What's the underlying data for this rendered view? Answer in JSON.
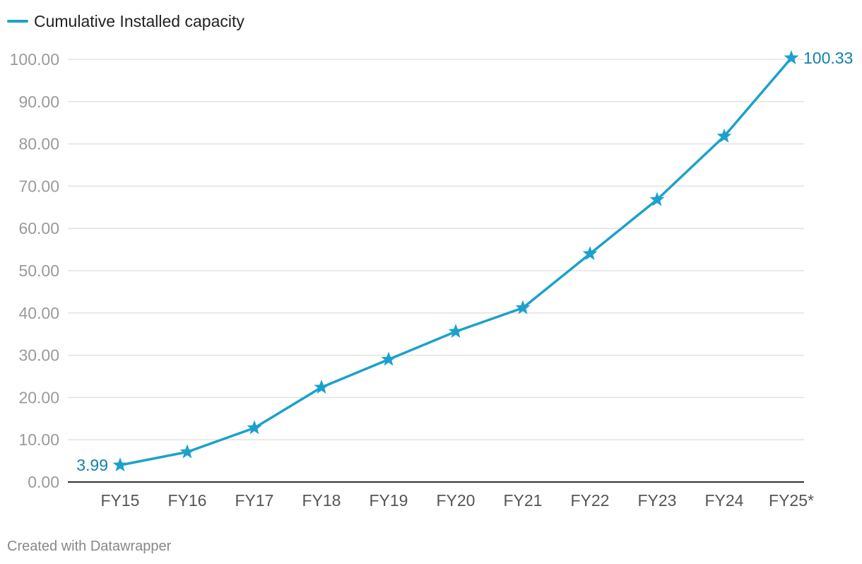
{
  "colors": {
    "series": "#1ba1cc",
    "label": "#0f83a6",
    "grid": "#e2e2e2",
    "axis": "#333333"
  },
  "chart_data": {
    "type": "line",
    "marker": "star",
    "categories": [
      "FY15",
      "FY16",
      "FY17",
      "FY18",
      "FY19",
      "FY20",
      "FY21",
      "FY22",
      "FY23",
      "FY24",
      "FY25*"
    ],
    "series": [
      {
        "name": "Cumulative Installed capacity",
        "values": [
          3.99,
          7.1,
          12.8,
          22.4,
          29.0,
          35.6,
          41.2,
          54.0,
          66.8,
          81.8,
          100.33
        ]
      }
    ],
    "labeled_points": [
      {
        "index": 0,
        "text": "3.99",
        "side": "left"
      },
      {
        "index": 10,
        "text": "100.33",
        "side": "right"
      }
    ],
    "yticks": [
      "0.00",
      "10.00",
      "20.00",
      "30.00",
      "40.00",
      "50.00",
      "60.00",
      "70.00",
      "80.00",
      "90.00",
      "100.00"
    ],
    "ylim": [
      0,
      100
    ],
    "grid": true,
    "legend": "top-left",
    "title": "",
    "xlabel": "",
    "ylabel": ""
  },
  "footer": {
    "credit": "Created with Datawrapper"
  }
}
